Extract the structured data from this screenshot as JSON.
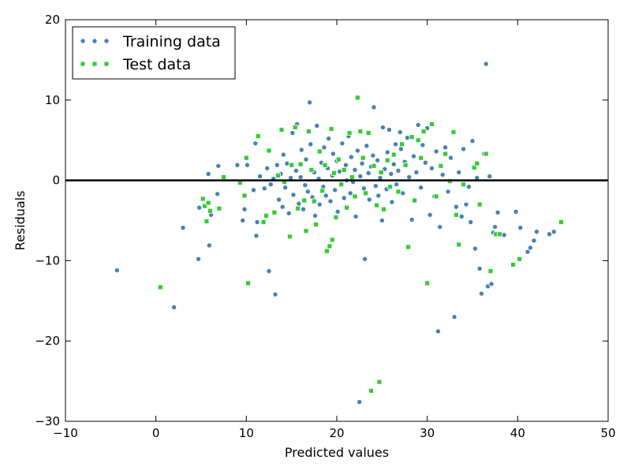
{
  "chart_data": {
    "type": "scatter",
    "xlabel": "Predicted values",
    "ylabel": "Residuals",
    "xlim": [
      -10,
      50
    ],
    "ylim": [
      -30,
      20
    ],
    "xticks": [
      -10,
      0,
      10,
      20,
      30,
      40,
      50
    ],
    "yticks": [
      -30,
      -20,
      -10,
      0,
      10,
      20
    ],
    "x_tick_labels": [
      "−10",
      "0",
      "10",
      "20",
      "30",
      "40",
      "50"
    ],
    "y_tick_labels": [
      "−30",
      "−20",
      "−10",
      "0",
      "10",
      "20"
    ],
    "hline_y": 0,
    "grid": false,
    "legend_position": "top-left",
    "series": [
      {
        "name": "Training data",
        "marker": "circle",
        "color": "#4682B4",
        "points": [
          [
            -4.3,
            -11.2
          ],
          [
            2.0,
            -15.8
          ],
          [
            3.0,
            -5.9
          ],
          [
            4.7,
            -9.8
          ],
          [
            4.8,
            -3.4
          ],
          [
            5.8,
            0.8
          ],
          [
            5.9,
            -8.1
          ],
          [
            6.1,
            -4.3
          ],
          [
            6.8,
            -1.7
          ],
          [
            6.9,
            1.8
          ],
          [
            9.0,
            1.9
          ],
          [
            9.6,
            -5.0
          ],
          [
            9.8,
            -3.6
          ],
          [
            10.1,
            1.9
          ],
          [
            10.8,
            -1.2
          ],
          [
            11.0,
            4.6
          ],
          [
            11.1,
            -6.9
          ],
          [
            11.2,
            -5.2
          ],
          [
            11.5,
            0.5
          ],
          [
            12.0,
            -1.0
          ],
          [
            12.3,
            1.5
          ],
          [
            12.5,
            -11.3
          ],
          [
            12.7,
            -0.5
          ],
          [
            13.0,
            0.2
          ],
          [
            13.2,
            -14.2
          ],
          [
            13.4,
            1.9
          ],
          [
            13.6,
            -2.4
          ],
          [
            13.8,
            0.8
          ],
          [
            14.0,
            -3.3
          ],
          [
            14.1,
            3.2
          ],
          [
            14.3,
            -0.9
          ],
          [
            14.5,
            2.1
          ],
          [
            14.7,
            -4.1
          ],
          [
            14.9,
            0.3
          ],
          [
            15.1,
            5.9
          ],
          [
            15.2,
            -1.8
          ],
          [
            15.5,
            1.2
          ],
          [
            15.6,
            7.0
          ],
          [
            15.8,
            -2.9
          ],
          [
            16.0,
            0.4
          ],
          [
            16.1,
            3.8
          ],
          [
            16.3,
            -3.6
          ],
          [
            16.5,
            -0.6
          ],
          [
            16.6,
            2.6
          ],
          [
            16.8,
            -1.4
          ],
          [
            17.0,
            9.7
          ],
          [
            17.1,
            4.5
          ],
          [
            17.3,
            -2.1
          ],
          [
            17.5,
            1.0
          ],
          [
            17.6,
            -4.4
          ],
          [
            17.8,
            6.8
          ],
          [
            18.0,
            0.2
          ],
          [
            18.1,
            -3.0
          ],
          [
            18.3,
            2.2
          ],
          [
            18.5,
            -0.8
          ],
          [
            18.6,
            4.1
          ],
          [
            18.8,
            -1.9
          ],
          [
            19.0,
            1.5
          ],
          [
            19.1,
            5.2
          ],
          [
            19.3,
            -2.6
          ],
          [
            19.5,
            0.6
          ],
          [
            19.6,
            3.3
          ],
          [
            19.8,
            -1.2
          ],
          [
            20.0,
            2.4
          ],
          [
            20.1,
            -3.9
          ],
          [
            20.3,
            1.1
          ],
          [
            20.5,
            -0.4
          ],
          [
            20.6,
            4.6
          ],
          [
            20.8,
            -2.2
          ],
          [
            21.0,
            1.9
          ],
          [
            21.1,
            0.0
          ],
          [
            21.3,
            5.5
          ],
          [
            21.5,
            -1.6
          ],
          [
            21.6,
            2.9
          ],
          [
            21.8,
            -0.2
          ],
          [
            22.0,
            1.3
          ],
          [
            22.1,
            -4.5
          ],
          [
            22.3,
            3.7
          ],
          [
            22.5,
            -27.6
          ],
          [
            22.6,
            0.5
          ],
          [
            22.8,
            2.1
          ],
          [
            23.0,
            -1.0
          ],
          [
            23.1,
            -9.8
          ],
          [
            23.3,
            4.3
          ],
          [
            23.5,
            0.9
          ],
          [
            23.6,
            -2.4
          ],
          [
            23.8,
            1.7
          ],
          [
            24.0,
            3.1
          ],
          [
            24.1,
            9.1
          ],
          [
            24.3,
            -0.7
          ],
          [
            24.5,
            2.5
          ],
          [
            24.6,
            -1.9
          ],
          [
            24.8,
            0.3
          ],
          [
            25.0,
            -5.0
          ],
          [
            25.1,
            6.6
          ],
          [
            25.3,
            1.4
          ],
          [
            25.5,
            -1.1
          ],
          [
            25.6,
            3.5
          ],
          [
            25.8,
            6.3
          ],
          [
            26.0,
            0.8
          ],
          [
            26.1,
            -2.7
          ],
          [
            26.3,
            2.0
          ],
          [
            26.5,
            4.5
          ],
          [
            26.6,
            -0.5
          ],
          [
            26.8,
            1.2
          ],
          [
            27.0,
            6.0
          ],
          [
            27.1,
            3.9
          ],
          [
            27.3,
            -1.6
          ],
          [
            27.5,
            2.3
          ],
          [
            27.8,
            5.3
          ],
          [
            28.0,
            0.4
          ],
          [
            28.3,
            -4.9
          ],
          [
            28.5,
            3.0
          ],
          [
            28.8,
            1.0
          ],
          [
            29.0,
            6.9
          ],
          [
            29.3,
            -0.9
          ],
          [
            29.5,
            4.4
          ],
          [
            29.8,
            2.2
          ],
          [
            30.0,
            6.5
          ],
          [
            30.3,
            -4.3
          ],
          [
            30.5,
            1.5
          ],
          [
            30.8,
            -2.0
          ],
          [
            31.0,
            3.6
          ],
          [
            31.2,
            -18.8
          ],
          [
            31.4,
            -5.8
          ],
          [
            31.7,
            0.7
          ],
          [
            32.0,
            4.1
          ],
          [
            32.3,
            -1.4
          ],
          [
            32.6,
            2.8
          ],
          [
            33.0,
            -17.0
          ],
          [
            33.2,
            -3.3
          ],
          [
            33.5,
            1.0
          ],
          [
            33.8,
            -4.5
          ],
          [
            34.0,
            3.9
          ],
          [
            34.3,
            -3.0
          ],
          [
            34.6,
            -0.8
          ],
          [
            34.8,
            -5.2
          ],
          [
            35.0,
            4.9
          ],
          [
            35.3,
            -8.5
          ],
          [
            35.5,
            0.3
          ],
          [
            35.8,
            -11.0
          ],
          [
            36.0,
            -14.1
          ],
          [
            36.3,
            3.3
          ],
          [
            36.5,
            14.5
          ],
          [
            36.7,
            -13.2
          ],
          [
            36.9,
            0.5
          ],
          [
            37.1,
            -12.9
          ],
          [
            37.3,
            -6.5
          ],
          [
            37.5,
            -5.8
          ],
          [
            37.8,
            -4.0
          ],
          [
            38.5,
            -6.8
          ],
          [
            39.8,
            -3.9
          ],
          [
            40.3,
            -5.9
          ],
          [
            41.1,
            -8.9
          ],
          [
            41.4,
            -8.4
          ],
          [
            41.8,
            -7.5
          ],
          [
            42.1,
            -6.4
          ],
          [
            43.5,
            -6.7
          ],
          [
            44.0,
            -6.4
          ]
        ]
      },
      {
        "name": "Test data",
        "marker": "square",
        "color": "#32CD32",
        "points": [
          [
            0.5,
            -13.3
          ],
          [
            5.2,
            -2.3
          ],
          [
            5.4,
            -3.2
          ],
          [
            5.6,
            -5.1
          ],
          [
            5.8,
            -2.8
          ],
          [
            6.0,
            -3.8
          ],
          [
            7.0,
            -3.5
          ],
          [
            7.5,
            0.4
          ],
          [
            9.3,
            -0.3
          ],
          [
            9.8,
            -1.9
          ],
          [
            10.0,
            2.8
          ],
          [
            10.2,
            -12.8
          ],
          [
            11.3,
            5.5
          ],
          [
            11.9,
            -5.2
          ],
          [
            12.2,
            -4.4
          ],
          [
            12.5,
            3.7
          ],
          [
            13.1,
            -4.0
          ],
          [
            13.5,
            0.6
          ],
          [
            13.9,
            6.3
          ],
          [
            14.2,
            -0.2
          ],
          [
            14.8,
            -7.0
          ],
          [
            15.0,
            1.9
          ],
          [
            15.4,
            6.6
          ],
          [
            15.7,
            -3.5
          ],
          [
            16.0,
            2.0
          ],
          [
            16.4,
            -2.5
          ],
          [
            16.6,
            -6.3
          ],
          [
            16.9,
            6.1
          ],
          [
            17.2,
            1.3
          ],
          [
            17.5,
            -2.6
          ],
          [
            17.7,
            -5.5
          ],
          [
            18.1,
            3.6
          ],
          [
            18.4,
            -1.3
          ],
          [
            18.7,
            1.9
          ],
          [
            18.9,
            -8.8
          ],
          [
            19.2,
            -8.2
          ],
          [
            19.4,
            6.4
          ],
          [
            19.5,
            -7.4
          ],
          [
            19.7,
            0.9
          ],
          [
            19.9,
            -4.6
          ],
          [
            20.2,
            2.6
          ],
          [
            20.5,
            -0.5
          ],
          [
            20.8,
            1.3
          ],
          [
            21.1,
            -3.4
          ],
          [
            21.4,
            5.9
          ],
          [
            21.7,
            0.4
          ],
          [
            22.0,
            -2.0
          ],
          [
            22.3,
            10.3
          ],
          [
            22.6,
            6.1
          ],
          [
            22.9,
            2.8
          ],
          [
            23.2,
            -1.6
          ],
          [
            23.5,
            5.9
          ],
          [
            23.8,
            -26.2
          ],
          [
            24.1,
            1.8
          ],
          [
            24.4,
            -3.1
          ],
          [
            24.7,
            -25.1
          ],
          [
            24.9,
            1.0
          ],
          [
            25.2,
            -3.6
          ],
          [
            25.6,
            2.5
          ],
          [
            25.9,
            -0.8
          ],
          [
            26.3,
            3.2
          ],
          [
            26.8,
            -1.4
          ],
          [
            27.2,
            4.5
          ],
          [
            27.6,
            1.9
          ],
          [
            27.9,
            -8.3
          ],
          [
            28.3,
            5.4
          ],
          [
            28.6,
            -2.5
          ],
          [
            29.0,
            5.0
          ],
          [
            29.3,
            2.8
          ],
          [
            29.6,
            6.1
          ],
          [
            30.0,
            -12.8
          ],
          [
            30.5,
            7.0
          ],
          [
            31.0,
            -2.0
          ],
          [
            31.5,
            1.8
          ],
          [
            32.0,
            3.3
          ],
          [
            32.5,
            -0.1
          ],
          [
            32.9,
            6.0
          ],
          [
            33.2,
            -4.3
          ],
          [
            33.5,
            -8.0
          ],
          [
            34.0,
            -0.5
          ],
          [
            35.2,
            1.6
          ],
          [
            35.5,
            2.1
          ],
          [
            35.8,
            -3.0
          ],
          [
            36.5,
            3.3
          ],
          [
            37.0,
            -11.3
          ],
          [
            37.6,
            -6.7
          ],
          [
            38.0,
            -6.7
          ],
          [
            39.5,
            -10.5
          ],
          [
            40.2,
            -9.8
          ],
          [
            44.8,
            -5.2
          ]
        ]
      }
    ]
  }
}
